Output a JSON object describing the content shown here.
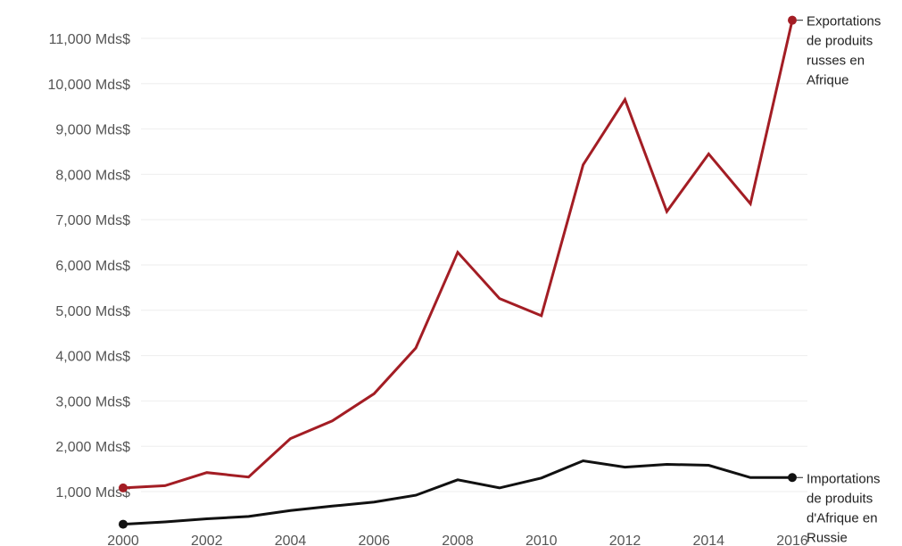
{
  "chart_data": {
    "type": "line",
    "title": "",
    "xlabel": "",
    "ylabel": "",
    "x": [
      2000,
      2001,
      2002,
      2003,
      2004,
      2005,
      2006,
      2007,
      2008,
      2009,
      2010,
      2011,
      2012,
      2013,
      2014,
      2015,
      2016
    ],
    "x_ticks": [
      "2000",
      "2002",
      "2004",
      "2006",
      "2008",
      "2010",
      "2012",
      "2014",
      "2016"
    ],
    "y_ticks": [
      "1,000 Mds$",
      "2,000 Mds$",
      "3,000 Mds$",
      "4,000 Mds$",
      "5,000 Mds$",
      "6,000 Mds$",
      "7,000 Mds$",
      "8,000 Mds$",
      "9,000 Mds$",
      "10,000 Mds$",
      "11,000 Mds$"
    ],
    "ylim": [
      250,
      11600
    ],
    "xlim": [
      2000,
      2016
    ],
    "grid": true,
    "series": [
      {
        "name": [
          "Exportations",
          "de produits",
          "russes en",
          "Afrique"
        ],
        "color": "#a31d24",
        "values": [
          1080,
          1130,
          1420,
          1320,
          2170,
          2560,
          3160,
          4170,
          6280,
          5260,
          4880,
          8210,
          9650,
          7180,
          8450,
          7350,
          11400
        ]
      },
      {
        "name": [
          "Importations",
          "de produits",
          "d'Afrique en",
          "Russie"
        ],
        "color": "#111111",
        "values": [
          280,
          330,
          400,
          450,
          580,
          680,
          770,
          920,
          1260,
          1080,
          1300,
          1680,
          1540,
          1600,
          1580,
          1310,
          1310
        ]
      }
    ]
  }
}
